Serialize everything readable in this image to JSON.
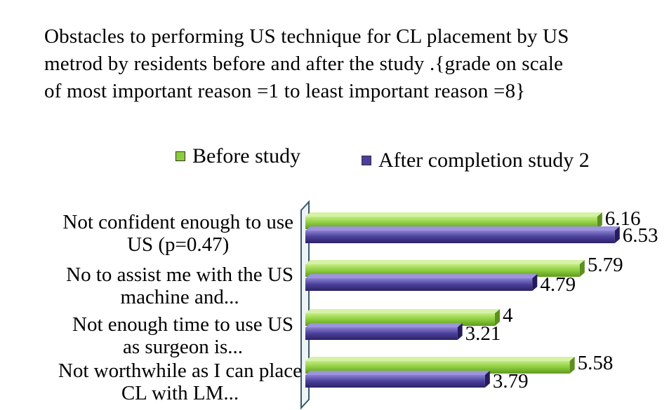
{
  "chart_data": {
    "type": "bar",
    "orientation": "horizontal",
    "title": "Obstacles to performing US technique for CL placement by US\nmetrod by residents before and after the study .{grade on scale\nof most important reason =1 to least important reason =8}",
    "categories": [
      [
        "Not confident enough to use",
        "US (p=0.47)"
      ],
      [
        "No to assist me with the US",
        "machine and..."
      ],
      [
        "Not enough time to use US",
        "as surgeon is..."
      ],
      [
        "Not worthwhile as I can place",
        "CL with LM..."
      ]
    ],
    "series": [
      {
        "name": "Before study",
        "color": "#8ccc3c",
        "values": [
          6.16,
          5.79,
          4,
          5.58
        ],
        "labels": [
          "6.16",
          "5.79",
          "4",
          "5.58"
        ]
      },
      {
        "name": "After completion study 2",
        "color": "#4a3f9a",
        "values": [
          6.53,
          4.79,
          3.21,
          3.79
        ],
        "labels": [
          "6.53",
          "4.79",
          "3.21",
          "3.79"
        ]
      }
    ],
    "xlim": [
      0,
      7
    ],
    "grid": false,
    "legend_position": "top"
  }
}
